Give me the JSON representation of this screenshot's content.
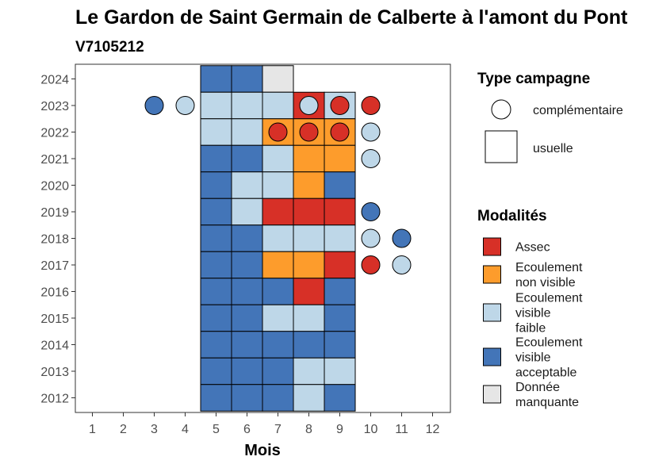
{
  "chart_data": {
    "type": "heatmap",
    "title": "Le Gardon de Saint Germain de Calberte à l'amont du Pont",
    "subtitle": "V7105212",
    "xlabel": "Mois",
    "ylabel": "",
    "x_ticks": [
      "1",
      "2",
      "3",
      "4",
      "5",
      "6",
      "7",
      "8",
      "9",
      "10",
      "11",
      "12"
    ],
    "y_ticks": [
      "2012",
      "2013",
      "2014",
      "2015",
      "2016",
      "2017",
      "2018",
      "2019",
      "2020",
      "2021",
      "2022",
      "2023",
      "2024"
    ],
    "colors": {
      "assec": "#d73027",
      "non_visible": "#fd9c2c",
      "faible": "#bed7e8",
      "acceptable": "#4375b8",
      "manquante": "#e6e6e6"
    },
    "legend_campagne": {
      "title": "Type campagne",
      "items": [
        {
          "label": "complémentaire",
          "shape": "circle"
        },
        {
          "label": "usuelle",
          "shape": "square"
        }
      ]
    },
    "legend_modalites": {
      "title": "Modalités",
      "items": [
        {
          "key": "assec",
          "lines": [
            "Assec"
          ]
        },
        {
          "key": "non_visible",
          "lines": [
            "Ecoulement",
            "non visible"
          ]
        },
        {
          "key": "faible",
          "lines": [
            "Ecoulement",
            "visible",
            "faible"
          ]
        },
        {
          "key": "acceptable",
          "lines": [
            "Ecoulement",
            "visible",
            "acceptable"
          ]
        },
        {
          "key": "manquante",
          "lines": [
            "Donnée",
            "manquante"
          ]
        }
      ]
    },
    "usuelle": [
      {
        "year": 2024,
        "month": 5,
        "mod": "acceptable"
      },
      {
        "year": 2024,
        "month": 6,
        "mod": "acceptable"
      },
      {
        "year": 2024,
        "month": 7,
        "mod": "manquante"
      },
      {
        "year": 2023,
        "month": 5,
        "mod": "faible"
      },
      {
        "year": 2023,
        "month": 6,
        "mod": "faible"
      },
      {
        "year": 2023,
        "month": 7,
        "mod": "faible"
      },
      {
        "year": 2023,
        "month": 8,
        "mod": "assec"
      },
      {
        "year": 2023,
        "month": 9,
        "mod": "faible"
      },
      {
        "year": 2022,
        "month": 5,
        "mod": "faible"
      },
      {
        "year": 2022,
        "month": 6,
        "mod": "faible"
      },
      {
        "year": 2022,
        "month": 7,
        "mod": "non_visible"
      },
      {
        "year": 2022,
        "month": 8,
        "mod": "non_visible"
      },
      {
        "year": 2022,
        "month": 9,
        "mod": "non_visible"
      },
      {
        "year": 2021,
        "month": 5,
        "mod": "acceptable"
      },
      {
        "year": 2021,
        "month": 6,
        "mod": "acceptable"
      },
      {
        "year": 2021,
        "month": 7,
        "mod": "faible"
      },
      {
        "year": 2021,
        "month": 8,
        "mod": "non_visible"
      },
      {
        "year": 2021,
        "month": 9,
        "mod": "non_visible"
      },
      {
        "year": 2020,
        "month": 5,
        "mod": "acceptable"
      },
      {
        "year": 2020,
        "month": 6,
        "mod": "faible"
      },
      {
        "year": 2020,
        "month": 7,
        "mod": "faible"
      },
      {
        "year": 2020,
        "month": 8,
        "mod": "non_visible"
      },
      {
        "year": 2020,
        "month": 9,
        "mod": "acceptable"
      },
      {
        "year": 2019,
        "month": 5,
        "mod": "acceptable"
      },
      {
        "year": 2019,
        "month": 6,
        "mod": "faible"
      },
      {
        "year": 2019,
        "month": 7,
        "mod": "assec"
      },
      {
        "year": 2019,
        "month": 8,
        "mod": "assec"
      },
      {
        "year": 2019,
        "month": 9,
        "mod": "assec"
      },
      {
        "year": 2018,
        "month": 5,
        "mod": "acceptable"
      },
      {
        "year": 2018,
        "month": 6,
        "mod": "acceptable"
      },
      {
        "year": 2018,
        "month": 7,
        "mod": "faible"
      },
      {
        "year": 2018,
        "month": 8,
        "mod": "faible"
      },
      {
        "year": 2018,
        "month": 9,
        "mod": "faible"
      },
      {
        "year": 2017,
        "month": 5,
        "mod": "acceptable"
      },
      {
        "year": 2017,
        "month": 6,
        "mod": "acceptable"
      },
      {
        "year": 2017,
        "month": 7,
        "mod": "non_visible"
      },
      {
        "year": 2017,
        "month": 8,
        "mod": "non_visible"
      },
      {
        "year": 2017,
        "month": 9,
        "mod": "assec"
      },
      {
        "year": 2016,
        "month": 5,
        "mod": "acceptable"
      },
      {
        "year": 2016,
        "month": 6,
        "mod": "acceptable"
      },
      {
        "year": 2016,
        "month": 7,
        "mod": "acceptable"
      },
      {
        "year": 2016,
        "month": 8,
        "mod": "assec"
      },
      {
        "year": 2016,
        "month": 9,
        "mod": "acceptable"
      },
      {
        "year": 2015,
        "month": 5,
        "mod": "acceptable"
      },
      {
        "year": 2015,
        "month": 6,
        "mod": "acceptable"
      },
      {
        "year": 2015,
        "month": 7,
        "mod": "faible"
      },
      {
        "year": 2015,
        "month": 8,
        "mod": "faible"
      },
      {
        "year": 2015,
        "month": 9,
        "mod": "acceptable"
      },
      {
        "year": 2014,
        "month": 5,
        "mod": "acceptable"
      },
      {
        "year": 2014,
        "month": 6,
        "mod": "acceptable"
      },
      {
        "year": 2014,
        "month": 7,
        "mod": "acceptable"
      },
      {
        "year": 2014,
        "month": 8,
        "mod": "acceptable"
      },
      {
        "year": 2014,
        "month": 9,
        "mod": "acceptable"
      },
      {
        "year": 2013,
        "month": 5,
        "mod": "acceptable"
      },
      {
        "year": 2013,
        "month": 6,
        "mod": "acceptable"
      },
      {
        "year": 2013,
        "month": 7,
        "mod": "acceptable"
      },
      {
        "year": 2013,
        "month": 8,
        "mod": "faible"
      },
      {
        "year": 2013,
        "month": 9,
        "mod": "faible"
      },
      {
        "year": 2012,
        "month": 5,
        "mod": "acceptable"
      },
      {
        "year": 2012,
        "month": 6,
        "mod": "acceptable"
      },
      {
        "year": 2012,
        "month": 7,
        "mod": "acceptable"
      },
      {
        "year": 2012,
        "month": 8,
        "mod": "faible"
      },
      {
        "year": 2012,
        "month": 9,
        "mod": "acceptable"
      }
    ],
    "complementaire": [
      {
        "year": 2023,
        "month": 3,
        "mod": "acceptable"
      },
      {
        "year": 2023,
        "month": 4,
        "mod": "faible"
      },
      {
        "year": 2023,
        "month": 8,
        "mod": "faible"
      },
      {
        "year": 2023,
        "month": 9,
        "mod": "assec"
      },
      {
        "year": 2023,
        "month": 10,
        "mod": "assec"
      },
      {
        "year": 2022,
        "month": 7,
        "mod": "assec"
      },
      {
        "year": 2022,
        "month": 8,
        "mod": "assec"
      },
      {
        "year": 2022,
        "month": 9,
        "mod": "assec"
      },
      {
        "year": 2022,
        "month": 10,
        "mod": "faible"
      },
      {
        "year": 2021,
        "month": 10,
        "mod": "faible"
      },
      {
        "year": 2019,
        "month": 10,
        "mod": "acceptable"
      },
      {
        "year": 2018,
        "month": 10,
        "mod": "faible"
      },
      {
        "year": 2018,
        "month": 11,
        "mod": "acceptable"
      },
      {
        "year": 2017,
        "month": 10,
        "mod": "assec"
      },
      {
        "year": 2017,
        "month": 11,
        "mod": "faible"
      }
    ]
  }
}
